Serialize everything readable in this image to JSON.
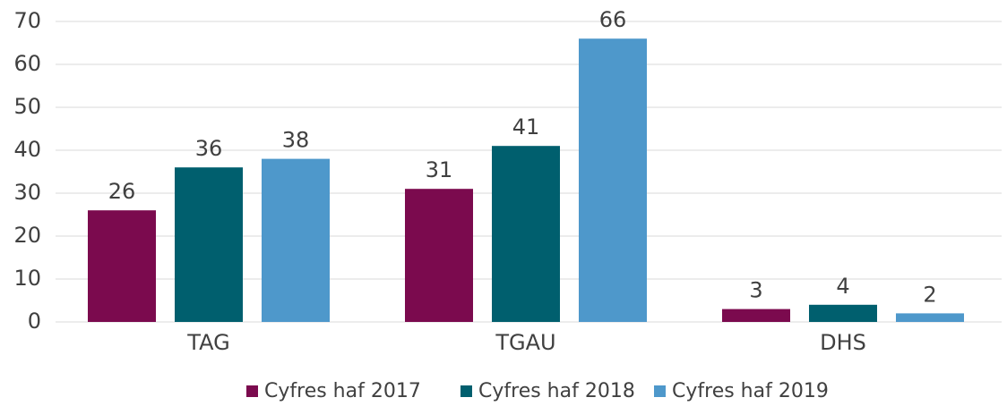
{
  "chart_data": {
    "type": "bar",
    "categories": [
      "TAG",
      "TGAU",
      "DHS"
    ],
    "series": [
      {
        "name": "Cyfres haf 2017",
        "color": "#7b0a4e",
        "values": [
          26,
          31,
          3
        ]
      },
      {
        "name": "Cyfres haf 2018",
        "color": "#005f6e",
        "values": [
          36,
          41,
          4
        ]
      },
      {
        "name": "Cyfres haf 2019",
        "color": "#4e98cb",
        "values": [
          38,
          66,
          2
        ]
      }
    ],
    "ylim": [
      0,
      70
    ],
    "yticks": [
      0,
      10,
      20,
      30,
      40,
      50,
      60,
      70
    ],
    "grid": true,
    "legend": "bottom"
  }
}
